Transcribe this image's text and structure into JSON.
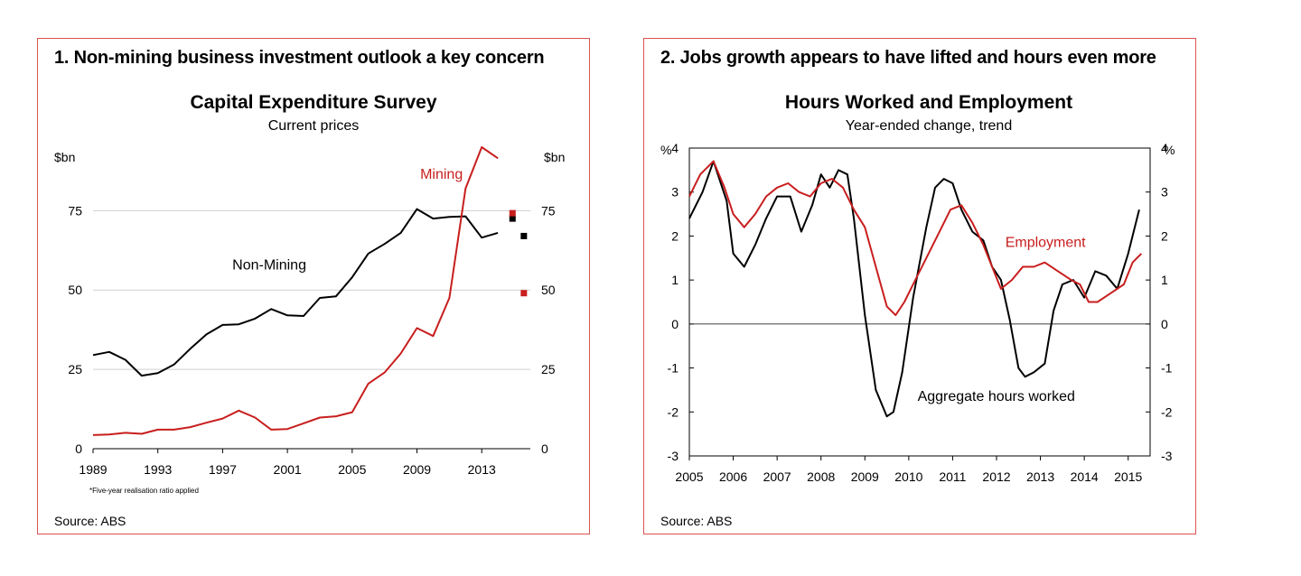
{
  "colors": {
    "border": "#d9534f",
    "red": "#c81e1e",
    "black": "#000000",
    "grid": "#cfcfcf"
  },
  "panels": [
    {
      "heading": "1. Non-mining business investment outlook a key concern",
      "source": "Source: ABS",
      "note": "*Five-year realisation ratio applied"
    },
    {
      "heading": "2. Jobs growth appears to have lifted and hours even more",
      "source": "Source: ABS"
    }
  ],
  "chart_data": [
    {
      "type": "line",
      "title": "Capital Expenditure Survey",
      "subtitle": "Current prices",
      "yunit_left": "$bn",
      "yunit_right": "$bn",
      "xlim": [
        1989,
        2016
      ],
      "xticks": [
        1989,
        1993,
        1997,
        2001,
        2005,
        2009,
        2013
      ],
      "ylim": [
        0,
        95
      ],
      "yticks": [
        0,
        25,
        50,
        75
      ],
      "grid": true,
      "series": [
        {
          "name": "Non-Mining",
          "color": "#000000",
          "x": [
            1989,
            1990,
            1991,
            1992,
            1993,
            1994,
            1995,
            1996,
            1997,
            1998,
            1999,
            2000,
            2001,
            2002,
            2003,
            2004,
            2005,
            2006,
            2007,
            2008,
            2009,
            2010,
            2011,
            2012,
            2013,
            2014
          ],
          "values": [
            29.5,
            30.5,
            28,
            23,
            23.8,
            26.5,
            31.5,
            36,
            39,
            39.2,
            41,
            44,
            42,
            41.8,
            47.5,
            48,
            54,
            61.5,
            64.5,
            68,
            75.5,
            72.5,
            73,
            73.2,
            66.5,
            68
          ],
          "label_x": 1997.6,
          "label_y": 56.5
        },
        {
          "name": "Mining",
          "color": "#c81e1e",
          "x": [
            1989,
            1990,
            1991,
            1992,
            1993,
            1994,
            1995,
            1996,
            1997,
            1998,
            1999,
            2000,
            2001,
            2002,
            2003,
            2004,
            2005,
            2006,
            2007,
            2008,
            2009,
            2010,
            2011,
            2012,
            2013,
            2014
          ],
          "values": [
            4.3,
            4.5,
            5,
            4.7,
            6,
            6,
            6.8,
            8.2,
            9.5,
            12,
            9.8,
            6,
            6.2,
            8,
            9.8,
            10.2,
            11.5,
            20.5,
            24,
            30,
            38,
            35.5,
            47.5,
            82,
            95,
            91.5
          ],
          "label_x": 2009.2,
          "label_y": 85
        }
      ],
      "markers": [
        {
          "x": 2014.9,
          "value": 72.5,
          "color": "#000000"
        },
        {
          "x": 2014.9,
          "value": 74.2,
          "color": "#c81e1e"
        },
        {
          "x": 2015.6,
          "value": 67,
          "color": "#000000"
        },
        {
          "x": 2015.6,
          "value": 49,
          "color": "#c81e1e"
        }
      ]
    },
    {
      "type": "line",
      "title": "Hours Worked and Employment",
      "subtitle": "Year-ended change, trend",
      "yunit_left": "%",
      "yunit_right": "%",
      "xlim": [
        2005,
        2015.5
      ],
      "xticks": [
        2005,
        2006,
        2007,
        2008,
        2009,
        2010,
        2011,
        2012,
        2013,
        2014,
        2015
      ],
      "ylim": [
        -3,
        4
      ],
      "yticks": [
        -3,
        -2,
        -1,
        0,
        1,
        2,
        3,
        4
      ],
      "grid": false,
      "series": [
        {
          "name": "Aggregate hours worked",
          "color": "#000000",
          "x": [
            2005.0,
            2005.3,
            2005.55,
            2005.85,
            2006.0,
            2006.25,
            2006.5,
            2006.75,
            2007.0,
            2007.3,
            2007.55,
            2007.8,
            2008.0,
            2008.2,
            2008.4,
            2008.6,
            2008.75,
            2009.0,
            2009.25,
            2009.5,
            2009.65,
            2009.85,
            2010.1,
            2010.4,
            2010.6,
            2010.8,
            2011.0,
            2011.2,
            2011.45,
            2011.7,
            2011.9,
            2012.1,
            2012.3,
            2012.5,
            2012.65,
            2012.85,
            2013.1,
            2013.3,
            2013.5,
            2013.75,
            2014.0,
            2014.25,
            2014.5,
            2014.75,
            2015.0,
            2015.25
          ],
          "values": [
            2.4,
            3.0,
            3.7,
            2.8,
            1.6,
            1.3,
            1.8,
            2.4,
            2.9,
            2.9,
            2.1,
            2.7,
            3.4,
            3.1,
            3.5,
            3.4,
            2.4,
            0.2,
            -1.5,
            -2.1,
            -2.0,
            -1.1,
            0.6,
            2.2,
            3.1,
            3.3,
            3.2,
            2.6,
            2.1,
            1.9,
            1.3,
            1.0,
            0.1,
            -1.0,
            -1.2,
            -1.1,
            -0.9,
            0.3,
            0.9,
            1.0,
            0.6,
            1.2,
            1.1,
            0.8,
            1.6,
            2.6
          ],
          "label_x": 2010.2,
          "label_y": -1.75
        },
        {
          "name": "Employment",
          "color": "#c81e1e",
          "x": [
            2005.0,
            2005.25,
            2005.55,
            2005.8,
            2006.0,
            2006.25,
            2006.5,
            2006.75,
            2007.0,
            2007.25,
            2007.5,
            2007.75,
            2008.0,
            2008.25,
            2008.5,
            2008.75,
            2009.0,
            2009.25,
            2009.5,
            2009.7,
            2009.9,
            2010.15,
            2010.4,
            2010.7,
            2010.95,
            2011.2,
            2011.45,
            2011.7,
            2011.9,
            2012.1,
            2012.35,
            2012.6,
            2012.85,
            2013.1,
            2013.4,
            2013.7,
            2013.9,
            2014.1,
            2014.3,
            2014.6,
            2014.9,
            2015.1,
            2015.3
          ],
          "values": [
            2.9,
            3.4,
            3.7,
            3.1,
            2.5,
            2.2,
            2.5,
            2.9,
            3.1,
            3.2,
            3.0,
            2.9,
            3.2,
            3.3,
            3.1,
            2.6,
            2.2,
            1.3,
            0.4,
            0.2,
            0.5,
            1.0,
            1.5,
            2.1,
            2.6,
            2.7,
            2.3,
            1.8,
            1.3,
            0.8,
            1.0,
            1.3,
            1.3,
            1.4,
            1.2,
            1.0,
            0.9,
            0.5,
            0.5,
            0.7,
            0.9,
            1.4,
            1.6
          ],
          "label_x": 2012.2,
          "label_y": 1.75
        }
      ]
    }
  ]
}
